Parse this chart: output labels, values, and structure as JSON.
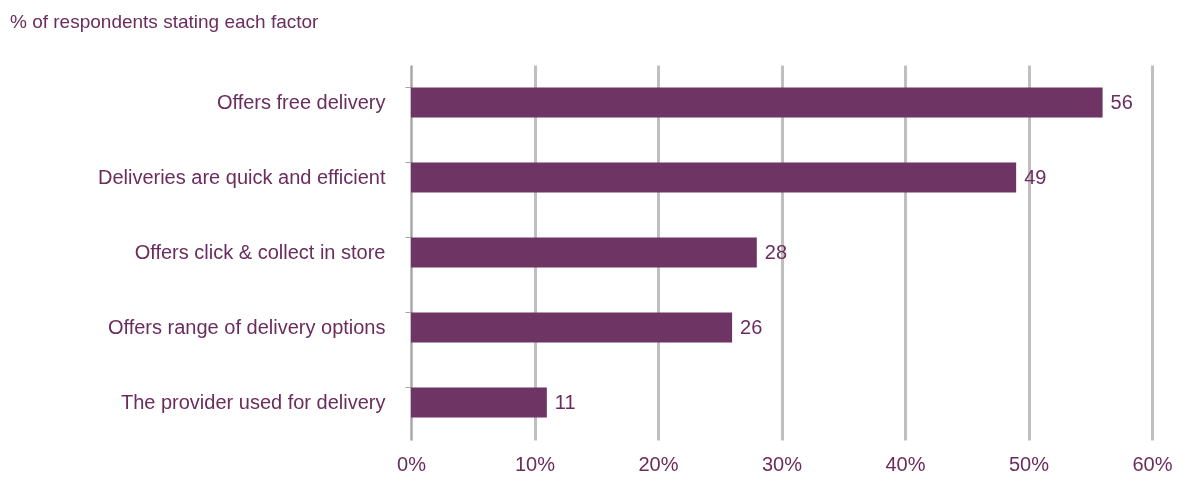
{
  "chart_data": {
    "type": "bar",
    "orientation": "horizontal",
    "title": "% of respondents stating each factor",
    "categories": [
      "Offers free delivery",
      "Deliveries are quick and efficient",
      "Offers click & collect in store",
      "Offers range of delivery options",
      "The provider used for delivery"
    ],
    "values": [
      56,
      49,
      28,
      26,
      11
    ],
    "color": "#6e3464",
    "data_labels": true,
    "xlim": [
      0,
      60
    ],
    "xticks": [
      {
        "value": 0,
        "label": "0%"
      },
      {
        "value": 10,
        "label": "10%"
      },
      {
        "value": 20,
        "label": "20%"
      },
      {
        "value": 30,
        "label": "30%"
      },
      {
        "value": 40,
        "label": "40%"
      },
      {
        "value": 50,
        "label": "50%"
      },
      {
        "value": 60,
        "label": "60%"
      }
    ],
    "grid": "x"
  }
}
